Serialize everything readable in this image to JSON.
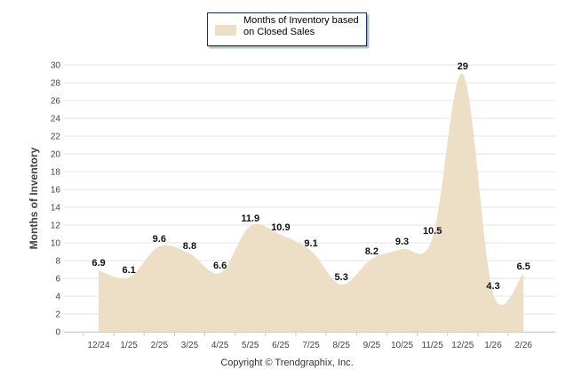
{
  "chart_data": {
    "type": "area",
    "title": "",
    "xlabel": "",
    "ylabel": "Months of Inventory",
    "categories": [
      "12/24",
      "1/25",
      "2/25",
      "3/25",
      "4/25",
      "5/25",
      "6/25",
      "7/25",
      "8/25",
      "9/25",
      "10/25",
      "11/25",
      "12/25",
      "1/26",
      "2/26"
    ],
    "series": [
      {
        "name": "Months of Inventory based on Closed Sales",
        "values": [
          6.9,
          6.1,
          9.6,
          8.8,
          6.6,
          11.9,
          10.9,
          9.1,
          5.3,
          8.2,
          9.3,
          10.5,
          29,
          4.3,
          6.5
        ]
      }
    ],
    "data_labels": [
      "6.9",
      "6.1",
      "9.6",
      "8.8",
      "6.6",
      "11.9",
      "10.9",
      "9.1",
      "5.3",
      "8.2",
      "9.3",
      "10.5",
      "29",
      "4.3",
      "6.5"
    ],
    "ylim": [
      0,
      30
    ],
    "yticks": [
      "0",
      "2",
      "4",
      "6",
      "8",
      "10",
      "12",
      "14",
      "16",
      "18",
      "20",
      "22",
      "24",
      "26",
      "28",
      "30"
    ],
    "grid": true,
    "legend_position": "top-center",
    "fill_color": "#ecdfc5"
  },
  "legend": {
    "label": "Months of Inventory based on Closed Sales"
  },
  "footer": {
    "copyright": "Copyright © Trendgraphix, Inc."
  }
}
